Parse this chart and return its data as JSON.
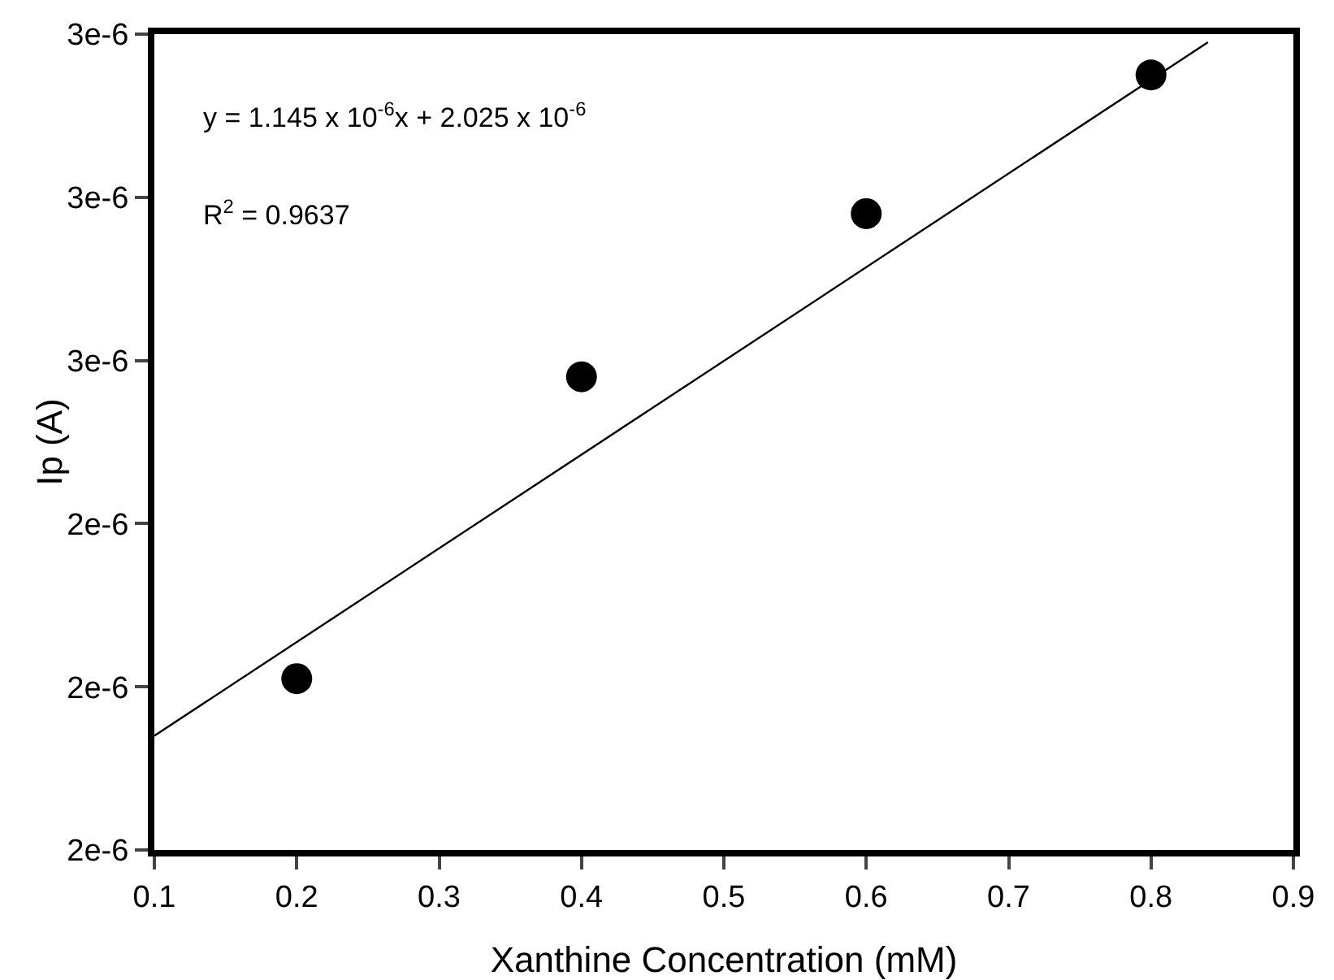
{
  "chart_data": {
    "type": "scatter",
    "xlabel": "Xanthine Concentration (mM)",
    "ylabel": "Ip (A)",
    "x": [
      0.2,
      0.4,
      0.6,
      0.8
    ],
    "series": [
      {
        "color": "#000000",
        "marker": "circle",
        "values": [
          2.21e-06,
          2.58e-06,
          2.78e-06,
          2.95e-06
        ]
      },
      {
        "type": "line",
        "color": "#000000",
        "marker": "none",
        "x": [
          0.1,
          0.84
        ],
        "values": [
          2.14e-06,
          2.99e-06
        ]
      }
    ],
    "xlim": [
      0.1,
      0.9
    ],
    "xticks": [
      0.1,
      0.2,
      0.3,
      0.4,
      0.5,
      0.6,
      0.7,
      0.8,
      0.9
    ],
    "ylim": [
      2e-06,
      3e-06
    ],
    "yticks": [
      {
        "value": 2e-06,
        "label": "2e-6"
      },
      {
        "value": 2.2e-06,
        "label": "2e-6"
      },
      {
        "value": 2.4e-06,
        "label": "2e-6"
      },
      {
        "value": 2.6e-06,
        "label": "3e-6"
      },
      {
        "value": 2.8e-06,
        "label": "3e-6"
      },
      {
        "value": 3e-06,
        "label": "3e-6"
      }
    ],
    "annotations": [
      "y = 1.145 x 10$^{-6}$x + 2.025 x 10$^{-6}$",
      "R$^{2}$ = 0.9637"
    ]
  }
}
